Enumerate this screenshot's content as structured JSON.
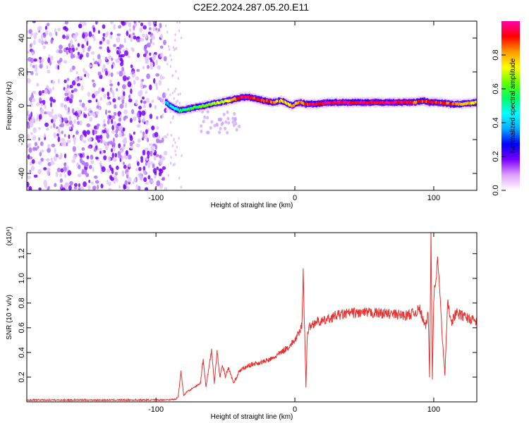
{
  "title": "C2E2.2024.287.05.20.E11",
  "chart_data": [
    {
      "type": "heatmap",
      "xlabel": "Height of straight line (km)",
      "ylabel": "Frequency (Hz)",
      "xlim": [
        -193,
        131
      ],
      "ylim": [
        -50,
        50
      ],
      "xticks": [
        -100,
        0,
        100
      ],
      "yticks": [
        -40,
        -20,
        0,
        20,
        40
      ],
      "colorbar": {
        "label": "Normalized spectral amplitude",
        "range": [
          0,
          1
        ],
        "ticks": [
          "0.0",
          "0.2",
          "0.4",
          "0.6",
          "0.8"
        ],
        "colors": [
          "#ffffff",
          "#e0a0ff",
          "#7a00ff",
          "#0000ff",
          "#00aaff",
          "#00ffff",
          "#00ff66",
          "#66ff00",
          "#ffff00",
          "#ff9900",
          "#ff0000",
          "#ff00aa"
        ]
      },
      "noise_region_x": [
        -193,
        -93
      ],
      "track": {
        "x": [
          -93,
          -88,
          -83,
          -78,
          -72,
          -66,
          -60,
          -54,
          -48,
          -43,
          -38,
          -33,
          -28,
          -22,
          -16,
          -10,
          -5,
          -2,
          0,
          3,
          8,
          15,
          25,
          40,
          60,
          75,
          85,
          92,
          97,
          104,
          112,
          120,
          131
        ],
        "freq": [
          2,
          -1,
          -3,
          -2,
          -1,
          0,
          1,
          2,
          3,
          4,
          5,
          5,
          4,
          3,
          2,
          3,
          1,
          0,
          1,
          2,
          1,
          1,
          2,
          2,
          2,
          2,
          2,
          3,
          2,
          2,
          1,
          1,
          2
        ],
        "amplitude": [
          0.4,
          0.45,
          0.5,
          0.55,
          0.6,
          0.62,
          0.65,
          0.7,
          0.75,
          0.85,
          0.95,
          0.95,
          0.9,
          0.9,
          0.85,
          0.8,
          0.75,
          0.75,
          0.8,
          0.85,
          0.9,
          0.95,
          0.95,
          0.95,
          0.95,
          0.95,
          0.9,
          0.85,
          0.9,
          0.9,
          0.85,
          0.8,
          0.7
        ]
      }
    },
    {
      "type": "line",
      "xlabel": "Height of straight line (km)",
      "ylabel": "SNR (10 * v/v)",
      "y_multiplier": "(x10⁴)",
      "xlim": [
        -193,
        131
      ],
      "ylim": [
        0,
        1.37
      ],
      "xticks": [
        -100,
        0,
        100
      ],
      "yticks": [
        "0.2",
        "0.4",
        "0.6",
        "0.8",
        "1.0",
        "1.2"
      ],
      "color": "#e8312f",
      "series": [
        {
          "x": [
            -193,
            -150,
            -100,
            -86,
            -84,
            -82,
            -80,
            -78,
            -72,
            -68,
            -66,
            -64,
            -60,
            -58,
            -56,
            -54,
            -52,
            -50,
            -48,
            -44,
            -40,
            -32,
            -24,
            -16,
            -10,
            -4,
            0,
            3,
            5,
            6,
            7,
            8,
            9,
            10,
            12,
            15,
            20,
            30,
            40,
            45,
            60,
            80,
            86,
            90,
            94,
            96,
            97,
            98,
            99,
            100,
            103,
            106,
            108,
            110,
            113,
            116,
            120,
            131
          ],
          "y": [
            0.015,
            0.015,
            0.015,
            0.02,
            0.04,
            0.25,
            0.05,
            0.08,
            0.12,
            0.15,
            0.35,
            0.12,
            0.42,
            0.15,
            0.42,
            0.2,
            0.3,
            0.2,
            0.28,
            0.15,
            0.25,
            0.3,
            0.32,
            0.35,
            0.4,
            0.45,
            0.5,
            0.55,
            0.62,
            1.05,
            0.6,
            0.12,
            0.55,
            0.6,
            0.62,
            0.65,
            0.65,
            0.7,
            0.72,
            0.72,
            0.72,
            0.7,
            0.72,
            0.75,
            0.6,
            0.72,
            0.2,
            1.37,
            0.18,
            0.85,
            1.15,
            0.55,
            0.22,
            0.8,
            0.65,
            0.72,
            0.7,
            0.65
          ]
        }
      ]
    }
  ]
}
